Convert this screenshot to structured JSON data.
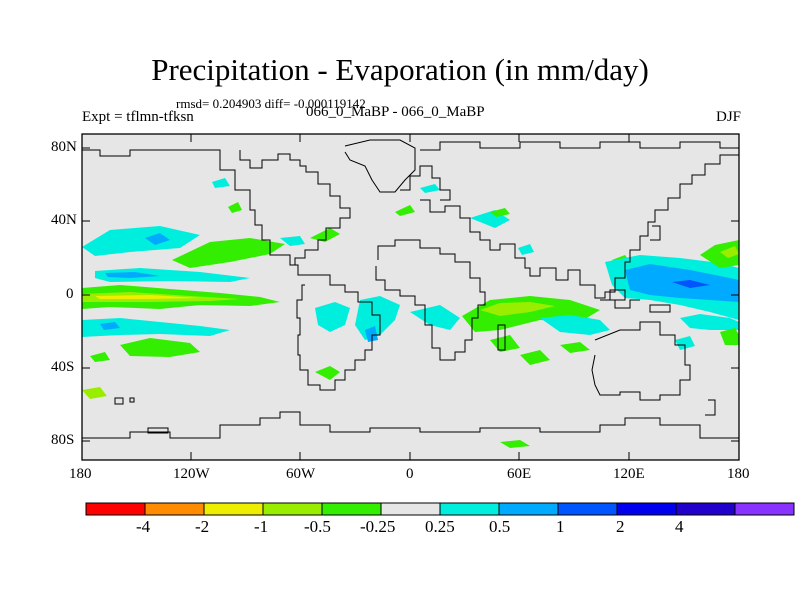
{
  "title": "Precipitation - Evaporation (in mm/day)",
  "stats": "rmsd= 0.204903 diff= -0.000119142",
  "expt": "Expt = tflmn-tfksn",
  "cases": "066_0_MaBP - 066_0_MaBP",
  "season": "DJF",
  "lat_ticks": [
    "80N",
    "40N",
    "0",
    "40S",
    "80S"
  ],
  "lon_ticks": [
    "180",
    "120W",
    "60W",
    "0",
    "60E",
    "120E",
    "180"
  ],
  "colors": {
    "land_ocean_bg": "#e6e6e6",
    "coast": "#000000"
  },
  "colorbar": {
    "colors": [
      "#ff0000",
      "#ff8c00",
      "#eeee00",
      "#99ee00",
      "#33ee00",
      "#e6e6e6",
      "#00eedd",
      "#00aaff",
      "#0055ff",
      "#0000ee",
      "#2200cc",
      "#8833ff"
    ],
    "labels": [
      "-4",
      "-2",
      "-1",
      "-0.5",
      "-0.25",
      "0.25",
      "0.5",
      "1",
      "2",
      "4"
    ]
  }
}
